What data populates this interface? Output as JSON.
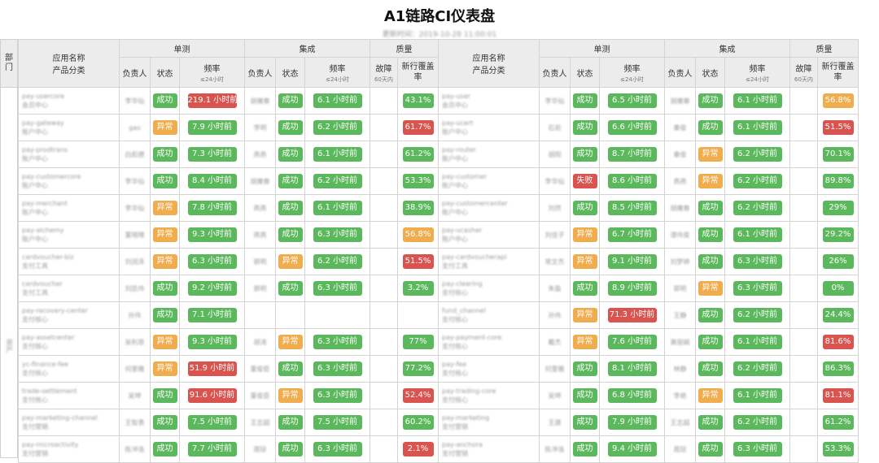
{
  "title": "A1链路CI仪表盘",
  "subtitle": "更新时间：2019-10-28 11:00:01",
  "dept_header": "部门",
  "dept_value": "资产",
  "headers": {
    "app": "应用名称",
    "category": "产品分类",
    "unit_test": "单测",
    "integration": "集成",
    "quality": "质量",
    "owner": "负责人",
    "status": "状态",
    "freq": "频率",
    "freq_sub": "≤24小时",
    "failures": "故障",
    "failures_sub": "60天内",
    "coverage": "新行覆盖率"
  },
  "colors": {
    "success": "#5cb85c",
    "warning": "#f0ad4e",
    "danger": "#d9534f"
  },
  "left_rows": [
    {
      "app": "pay-usercore",
      "cat": "会员中心",
      "o1": "李华仙",
      "s1": "成功",
      "s1c": "ok",
      "f1": "219.1 小时前",
      "f1c": "bad",
      "o2": "胡魔春",
      "s2": "成功",
      "s2c": "ok",
      "f2": "6.1 小时前",
      "f2c": "ok",
      "fail": "",
      "cov": "43.1%",
      "covc": "ok"
    },
    {
      "app": "pay-gateway",
      "cat": "账户中心",
      "o1": "gao",
      "s1": "异常",
      "s1c": "warn",
      "f1": "7.9 小时前",
      "f1c": "ok",
      "o2": "李明",
      "s2": "成功",
      "s2c": "ok",
      "f2": "6.2 小时前",
      "f2c": "ok",
      "fail": "",
      "cov": "61.7%",
      "covc": "bad"
    },
    {
      "app": "pay-prodtrans",
      "cat": "账户中心",
      "o1": "白彪德",
      "s1": "成功",
      "s1c": "ok",
      "f1": "7.3 小时前",
      "f1c": "ok",
      "o2": "燕燕",
      "s2": "成功",
      "s2c": "ok",
      "f2": "6.1 小时前",
      "f2c": "ok",
      "fail": "",
      "cov": "61.2%",
      "covc": "ok"
    },
    {
      "app": "pay-customercore",
      "cat": "账户中心",
      "o1": "李华仙",
      "s1": "成功",
      "s1c": "ok",
      "f1": "8.4 小时前",
      "f1c": "ok",
      "o2": "胡魔春",
      "s2": "成功",
      "s2c": "ok",
      "f2": "6.2 小时前",
      "f2c": "ok",
      "fail": "",
      "cov": "53.3%",
      "covc": "ok"
    },
    {
      "app": "pay-merchant",
      "cat": "账户中心",
      "o1": "李华仙",
      "s1": "异常",
      "s1c": "warn",
      "f1": "7.8 小时前",
      "f1c": "ok",
      "o2": "燕燕",
      "s2": "成功",
      "s2c": "ok",
      "f2": "6.1 小时前",
      "f2c": "ok",
      "fail": "",
      "cov": "38.9%",
      "covc": "ok"
    },
    {
      "app": "pay-alchemy",
      "cat": "账户中心",
      "o1": "董晓晴",
      "s1": "异常",
      "s1c": "warn",
      "f1": "9.3 小时前",
      "f1c": "ok",
      "o2": "燕燕",
      "s2": "成功",
      "s2c": "ok",
      "f2": "6.3 小时前",
      "f2c": "ok",
      "fail": "",
      "cov": "56.8%",
      "covc": "warn"
    },
    {
      "app": "cardvoucher-biz",
      "cat": "支付工具",
      "o1": "刘润泽",
      "s1": "异常",
      "s1c": "warn",
      "f1": "6.3 小时前",
      "f1c": "ok",
      "o2": "郭明",
      "s2": "异常",
      "s2c": "warn",
      "f2": "6.2 小时前",
      "f2c": "ok",
      "fail": "",
      "cov": "51.5%",
      "covc": "bad"
    },
    {
      "app": "cardvoucher",
      "cat": "支付工具",
      "o1": "刘凯伟",
      "s1": "成功",
      "s1c": "ok",
      "f1": "9.2 小时前",
      "f1c": "ok",
      "o2": "郭明",
      "s2": "成功",
      "s2c": "ok",
      "f2": "6.3 小时前",
      "f2c": "ok",
      "fail": "",
      "cov": "3.2%",
      "covc": "ok"
    },
    {
      "app": "pay-recovery-center",
      "cat": "支付核心",
      "o1": "孙伟",
      "s1": "成功",
      "s1c": "ok",
      "f1": "7.1 小时前",
      "f1c": "ok",
      "o2": "",
      "s2": "",
      "s2c": "",
      "f2": "",
      "f2c": "",
      "fail": "",
      "cov": "",
      "covc": ""
    },
    {
      "app": "pay-assetcenter",
      "cat": "支付核心",
      "o1": "吴利恩",
      "s1": "异常",
      "s1c": "warn",
      "f1": "9.3 小时前",
      "f1c": "ok",
      "o2": "胡涛",
      "s2": "异常",
      "s2c": "warn",
      "f2": "6.3 小时前",
      "f2c": "ok",
      "fail": "",
      "cov": "77%",
      "covc": "ok"
    },
    {
      "app": "yc-finance-fee",
      "cat": "支付核心",
      "o1": "何雯雅",
      "s1": "异常",
      "s1c": "warn",
      "f1": "51.9 小时前",
      "f1c": "bad",
      "o2": "董俊臣",
      "s2": "成功",
      "s2c": "ok",
      "f2": "6.3 小时前",
      "f2c": "ok",
      "fail": "",
      "cov": "77.2%",
      "covc": "ok"
    },
    {
      "app": "trade-settlement",
      "cat": "支付核心",
      "o1": "吴坤",
      "s1": "成功",
      "s1c": "ok",
      "f1": "91.6 小时前",
      "f1c": "bad",
      "o2": "董俊臣",
      "s2": "异常",
      "s2c": "warn",
      "f2": "6.3 小时前",
      "f2c": "ok",
      "fail": "",
      "cov": "52.4%",
      "covc": "bad"
    },
    {
      "app": "pay-marketing-channel",
      "cat": "支付营销",
      "o1": "王智勇",
      "s1": "成功",
      "s1c": "ok",
      "f1": "7.5 小时前",
      "f1c": "ok",
      "o2": "王志超",
      "s2": "成功",
      "s2c": "ok",
      "f2": "7.5 小时前",
      "f2c": "ok",
      "fail": "",
      "cov": "60.2%",
      "covc": "ok"
    },
    {
      "app": "pay-microactivity",
      "cat": "支付营销",
      "o1": "陈冲洛",
      "s1": "成功",
      "s1c": "ok",
      "f1": "7.7 小时前",
      "f1c": "ok",
      "o2": "周琼",
      "s2": "成功",
      "s2c": "ok",
      "f2": "6.3 小时前",
      "f2c": "ok",
      "fail": "",
      "cov": "2.1%",
      "covc": "bad"
    }
  ],
  "right_rows": [
    {
      "app": "pay-user",
      "cat": "会员中心",
      "o1": "李华仙",
      "s1": "成功",
      "s1c": "ok",
      "f1": "6.5 小时前",
      "f1c": "ok",
      "o2": "胡魔春",
      "s2": "成功",
      "s2c": "ok",
      "f2": "6.1 小时前",
      "f2c": "ok",
      "fail": "",
      "cov": "56.8%",
      "covc": "warn"
    },
    {
      "app": "pay-ucert",
      "cat": "账户中心",
      "o1": "石岩",
      "s1": "成功",
      "s1c": "ok",
      "f1": "6.6 小时前",
      "f1c": "ok",
      "o2": "秦俊",
      "s2": "成功",
      "s2c": "ok",
      "f2": "6.1 小时前",
      "f2c": "ok",
      "fail": "",
      "cov": "51.5%",
      "covc": "bad"
    },
    {
      "app": "pay-router",
      "cat": "账户中心",
      "o1": "胡阳",
      "s1": "成功",
      "s1c": "ok",
      "f1": "8.7 小时前",
      "f1c": "ok",
      "o2": "秦俊",
      "s2": "异常",
      "s2c": "warn",
      "f2": "6.2 小时前",
      "f2c": "ok",
      "fail": "",
      "cov": "70.1%",
      "covc": "ok"
    },
    {
      "app": "pay-customer",
      "cat": "账户中心",
      "o1": "李华仙",
      "s1": "失败",
      "s1c": "bad",
      "f1": "8.6 小时前",
      "f1c": "ok",
      "o2": "燕燕",
      "s2": "异常",
      "s2c": "warn",
      "f2": "6.2 小时前",
      "f2c": "ok",
      "fail": "",
      "cov": "89.8%",
      "covc": "ok"
    },
    {
      "app": "pay-customercenter",
      "cat": "账户中心",
      "o1": "刘然",
      "s1": "成功",
      "s1c": "ok",
      "f1": "8.5 小时前",
      "f1c": "ok",
      "o2": "胡魔春",
      "s2": "成功",
      "s2c": "ok",
      "f2": "6.2 小时前",
      "f2c": "ok",
      "fail": "",
      "cov": "29%",
      "covc": "ok"
    },
    {
      "app": "pay-ucasher",
      "cat": "账户中心",
      "o1": "刘佳子",
      "s1": "异常",
      "s1c": "warn",
      "f1": "6.7 小时前",
      "f1c": "ok",
      "o2": "谭伟俊",
      "s2": "成功",
      "s2c": "ok",
      "f2": "6.1 小时前",
      "f2c": "ok",
      "fail": "",
      "cov": "29.2%",
      "covc": "ok"
    },
    {
      "app": "pay-cardvoucherapi",
      "cat": "支付工具",
      "o1": "常文杰",
      "s1": "异常",
      "s1c": "warn",
      "f1": "9.1 小时前",
      "f1c": "ok",
      "o2": "刘梦婷",
      "s2": "成功",
      "s2c": "ok",
      "f2": "6.3 小时前",
      "f2c": "ok",
      "fail": "",
      "cov": "26%",
      "covc": "ok"
    },
    {
      "app": "pay-clearing",
      "cat": "支付核心",
      "o1": "朱盈",
      "s1": "成功",
      "s1c": "ok",
      "f1": "8.9 小时前",
      "f1c": "ok",
      "o2": "郭明",
      "s2": "异常",
      "s2c": "warn",
      "f2": "6.3 小时前",
      "f2c": "ok",
      "fail": "",
      "cov": "0%",
      "covc": "ok"
    },
    {
      "app": "fund_channel",
      "cat": "支付核心",
      "o1": "孙伟",
      "s1": "异常",
      "s1c": "warn",
      "f1": "71.3 小时前",
      "f1c": "bad",
      "o2": "王静",
      "s2": "成功",
      "s2c": "ok",
      "f2": "6.2 小时前",
      "f2c": "ok",
      "fail": "",
      "cov": "24.4%",
      "covc": "ok"
    },
    {
      "app": "pay-payment-core",
      "cat": "支付核心",
      "o1": "戴杰",
      "s1": "异常",
      "s1c": "warn",
      "f1": "7.6 小时前",
      "f1c": "ok",
      "o2": "黄丽娟",
      "s2": "成功",
      "s2c": "ok",
      "f2": "6.1 小时前",
      "f2c": "ok",
      "fail": "",
      "cov": "81.6%",
      "covc": "bad"
    },
    {
      "app": "pay-fee",
      "cat": "支付核心",
      "o1": "何雯雅",
      "s1": "成功",
      "s1c": "ok",
      "f1": "8.1 小时前",
      "f1c": "ok",
      "o2": "林静",
      "s2": "成功",
      "s2c": "ok",
      "f2": "6.2 小时前",
      "f2c": "ok",
      "fail": "",
      "cov": "86.3%",
      "covc": "ok"
    },
    {
      "app": "pay-trading-core",
      "cat": "支付核心",
      "o1": "吴坤",
      "s1": "成功",
      "s1c": "ok",
      "f1": "6.8 小时前",
      "f1c": "ok",
      "o2": "李艳",
      "s2": "异常",
      "s2c": "warn",
      "f2": "6.1 小时前",
      "f2c": "ok",
      "fail": "",
      "cov": "81.1%",
      "covc": "bad"
    },
    {
      "app": "pay-marketing",
      "cat": "支付营销",
      "o1": "王建",
      "s1": "成功",
      "s1c": "ok",
      "f1": "7.9 小时前",
      "f1c": "ok",
      "o2": "王志超",
      "s2": "成功",
      "s2c": "ok",
      "f2": "6.2 小时前",
      "f2c": "ok",
      "fail": "",
      "cov": "61.2%",
      "covc": "ok"
    },
    {
      "app": "pay-anchora",
      "cat": "支付营销",
      "o1": "陈冲洛",
      "s1": "成功",
      "s1c": "ok",
      "f1": "9.4 小时前",
      "f1c": "ok",
      "o2": "周琼",
      "s2": "成功",
      "s2c": "ok",
      "f2": "6.3 小时前",
      "f2c": "ok",
      "fail": "",
      "cov": "53.3%",
      "covc": "ok"
    }
  ]
}
